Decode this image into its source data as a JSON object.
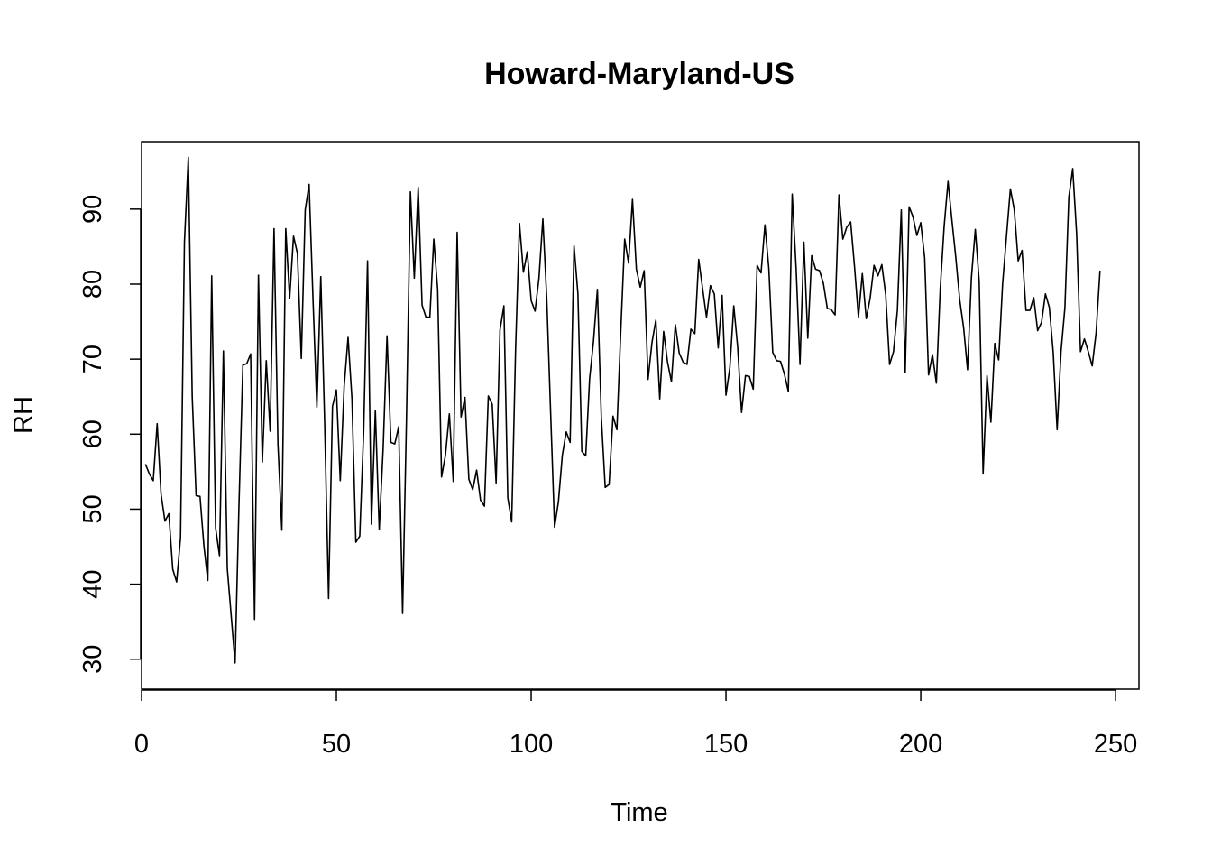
{
  "chart_data": {
    "type": "line",
    "title": "Howard-Maryland-US",
    "xlabel": "Time",
    "ylabel": "RH",
    "xlim": [
      0,
      256
    ],
    "ylim": [
      26,
      99
    ],
    "x_ticks": [
      0,
      50,
      100,
      150,
      200,
      250
    ],
    "y_ticks": [
      30,
      40,
      50,
      60,
      70,
      80,
      90
    ],
    "grid": false,
    "legend": "none",
    "line_color": "#000000",
    "series": [
      {
        "x_start": 1,
        "values": [
          56.0,
          54.7,
          53.8,
          61.4,
          52.0,
          48.4,
          49.4,
          42.0,
          40.3,
          46.2,
          85.6,
          96.9,
          65.0,
          51.8,
          51.7,
          45.1,
          40.5,
          81.1,
          47.5,
          43.8,
          71.1,
          42.1,
          35.8,
          29.5,
          50.6,
          69.2,
          69.4,
          70.7,
          35.3,
          81.2,
          56.3,
          69.8,
          60.4,
          87.4,
          58.7,
          47.2,
          87.4,
          78.1,
          86.4,
          84.1,
          70.1,
          89.9,
          93.3,
          78.0,
          63.6,
          81.0,
          61.4,
          38.1,
          63.7,
          65.9,
          53.8,
          66.4,
          72.9,
          64.7,
          45.6,
          46.4,
          60.3,
          83.1,
          48.0,
          63.1,
          47.3,
          58.0,
          73.1,
          58.9,
          58.7,
          61.0,
          36.1,
          62.2,
          92.3,
          80.8,
          92.9,
          77.2,
          75.6,
          75.6,
          86.0,
          79.3,
          54.3,
          57.2,
          62.7,
          53.7,
          86.9,
          62.3,
          64.9,
          54.0,
          52.6,
          55.2,
          51.2,
          50.4,
          65.1,
          64.0,
          53.5,
          73.9,
          77.1,
          51.5,
          48.3,
          71.3,
          88.1,
          81.6,
          84.3,
          77.8,
          76.4,
          80.8,
          88.7,
          78.1,
          62.8,
          47.6,
          51.0,
          57.2,
          60.3,
          58.9,
          85.1,
          78.7,
          57.7,
          57.1,
          67.4,
          72.4,
          79.3,
          62.3,
          52.9,
          53.3,
          62.4,
          60.6,
          73.8,
          86.0,
          82.8,
          91.3,
          82.0,
          79.6,
          81.8,
          67.3,
          72.2,
          75.2,
          64.7,
          73.7,
          69.6,
          67.0,
          74.6,
          70.8,
          69.6,
          69.3,
          74.0,
          73.4,
          83.3,
          79.4,
          75.6,
          79.8,
          78.7,
          71.5,
          78.5,
          65.2,
          68.9,
          77.1,
          71.6,
          62.9,
          67.8,
          67.7,
          66.0,
          82.5,
          81.5,
          87.9,
          82.1,
          70.9,
          69.8,
          69.7,
          68.0,
          65.7,
          92.0,
          82.2,
          69.3,
          85.6,
          72.8,
          83.8,
          82.0,
          81.8,
          80.1,
          76.8,
          76.6,
          75.9,
          91.9,
          86.0,
          87.6,
          88.3,
          82.3,
          75.6,
          81.4,
          75.4,
          78.1,
          82.5,
          81.1,
          82.6,
          78.6,
          69.3,
          71.0,
          76.5,
          89.9,
          68.2,
          90.3,
          89.0,
          86.5,
          88.2,
          83.5,
          67.9,
          70.6,
          66.8,
          79.4,
          87.7,
          93.7,
          88.5,
          83.5,
          77.9,
          74.2,
          68.6,
          80.9,
          87.3,
          80.3,
          54.7,
          67.8,
          61.6,
          72.1,
          69.9,
          80.0,
          86.4,
          92.7,
          89.9,
          83.1,
          84.5,
          76.5,
          76.5,
          78.2,
          73.8,
          74.9,
          78.7,
          76.9,
          70.9,
          60.6,
          71.0,
          76.9,
          91.6,
          95.4,
          86.7,
          71.0,
          72.7,
          71.0,
          69.1,
          73.5,
          81.8
        ]
      }
    ]
  }
}
